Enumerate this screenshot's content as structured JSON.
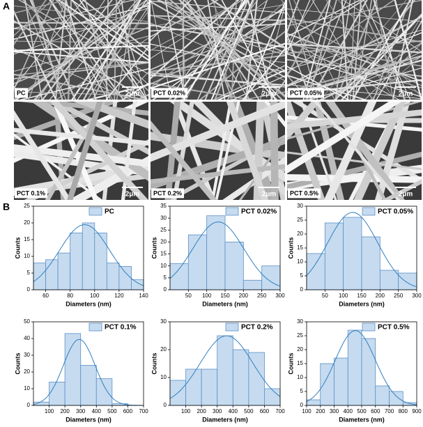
{
  "panel_labels": [
    "A",
    "B"
  ],
  "sem_images": [
    {
      "label": "PC",
      "scale": "2μm"
    },
    {
      "label": "PCT 0.02%",
      "scale": "2μm"
    },
    {
      "label": "PCT 0.05%",
      "scale": "2μm"
    },
    {
      "label": "PCT 0.1%",
      "scale": "2μm"
    },
    {
      "label": "PCT 0.2%",
      "scale": "2μm"
    },
    {
      "label": "PCT 0.5%",
      "scale": "2μm"
    }
  ],
  "chart_data": [
    {
      "type": "histogram",
      "x_label": "Diameters (nm)",
      "y_label": "Counts",
      "bins": [
        50,
        60,
        70,
        80,
        90,
        100,
        110,
        120,
        130,
        140
      ],
      "series": [
        {
          "name": "PC",
          "color": "#c6dbef",
          "values": [
            8,
            9,
            11,
            17,
            20,
            17,
            8,
            7,
            3
          ]
        }
      ],
      "xlim": [
        50,
        140
      ],
      "xticks": [
        60,
        80,
        100,
        120,
        140
      ],
      "ylim": [
        0,
        25
      ],
      "yticks": [
        0,
        5,
        10,
        15,
        20,
        25
      ]
    },
    {
      "type": "histogram",
      "x_label": "Diameters (nm)",
      "y_label": "Counts",
      "bins": [
        0,
        50,
        100,
        150,
        200,
        250,
        300
      ],
      "series": [
        {
          "name": "PCT 0.02%",
          "color": "#c6dbef",
          "values": [
            11,
            23,
            31,
            20,
            4,
            10
          ]
        }
      ],
      "xlim": [
        0,
        300
      ],
      "xticks": [
        50,
        100,
        150,
        200,
        250,
        300
      ],
      "ylim": [
        0,
        35
      ],
      "yticks": [
        0,
        5,
        10,
        15,
        20,
        25,
        30,
        35
      ]
    },
    {
      "type": "histogram",
      "x_label": "Diameters (nm)",
      "y_label": "Counts",
      "bins": [
        0,
        50,
        100,
        150,
        200,
        250,
        300
      ],
      "series": [
        {
          "name": "PCT 0.05%",
          "color": "#c6dbef",
          "values": [
            13,
            24,
            26,
            19,
            7,
            6
          ]
        }
      ],
      "xlim": [
        0,
        300
      ],
      "xticks": [
        50,
        100,
        150,
        200,
        250,
        300
      ],
      "ylim": [
        0,
        30
      ],
      "yticks": [
        0,
        5,
        10,
        15,
        20,
        25,
        30
      ]
    },
    {
      "type": "histogram",
      "x_label": "Diameters (nm)",
      "y_label": "Counts",
      "bins": [
        0,
        100,
        200,
        300,
        400,
        500,
        600
      ],
      "series": [
        {
          "name": "PCT 0.1%",
          "color": "#c6dbef",
          "values": [
            2,
            14,
            43,
            24,
            16,
            1
          ]
        }
      ],
      "xlim": [
        0,
        700
      ],
      "xticks": [
        100,
        200,
        300,
        400,
        500,
        600,
        700
      ],
      "ylim": [
        0,
        50
      ],
      "yticks": [
        0,
        10,
        20,
        30,
        40,
        50
      ]
    },
    {
      "type": "histogram",
      "x_label": "Diameters (nm)",
      "y_label": "Counts",
      "bins": [
        0,
        100,
        200,
        300,
        400,
        500,
        600,
        700
      ],
      "series": [
        {
          "name": "PCT 0.2%",
          "color": "#c6dbef",
          "values": [
            9,
            13,
            13,
            25,
            20,
            19,
            6
          ]
        }
      ],
      "xlim": [
        0,
        700
      ],
      "xticks": [
        100,
        200,
        300,
        400,
        500,
        600,
        700
      ],
      "ylim": [
        0,
        30
      ],
      "yticks": [
        0,
        10,
        20,
        30
      ]
    },
    {
      "type": "histogram",
      "x_label": "Diameters (nm)",
      "y_label": "Counts",
      "bins": [
        100,
        200,
        300,
        400,
        500,
        600,
        700,
        800,
        900
      ],
      "series": [
        {
          "name": "PCT 0.5%",
          "color": "#c6dbef",
          "values": [
            2,
            15,
            17,
            27,
            24,
            7,
            5,
            1
          ]
        }
      ],
      "xlim": [
        100,
        900
      ],
      "xticks": [
        100,
        200,
        300,
        400,
        500,
        600,
        700,
        800,
        900
      ],
      "ylim": [
        0,
        30
      ],
      "yticks": [
        0,
        5,
        10,
        15,
        20,
        25,
        30
      ]
    }
  ]
}
